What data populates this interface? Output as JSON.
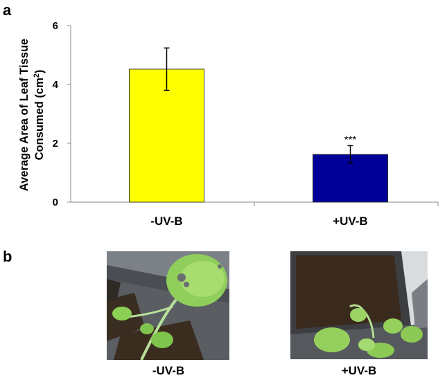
{
  "panel_a_label": "a",
  "panel_b_label": "b",
  "chart_data": {
    "type": "bar",
    "categories": [
      "-UV-B",
      "+UV-B"
    ],
    "values": [
      4.52,
      1.62
    ],
    "error": [
      0.72,
      0.3
    ],
    "annotations": [
      "",
      "***"
    ],
    "bar_colors": [
      "#ffff00",
      "#000099"
    ],
    "ylabel_line1": "Average Area of Leaf Tissue",
    "ylabel_line2": "Consumed (cm²)",
    "xlabel": "",
    "ylim": [
      0,
      6
    ],
    "yticks": [
      "0",
      "2",
      "4",
      "6"
    ],
    "grid": false
  },
  "photos": [
    {
      "caption": "-UV-B",
      "description": "damaged leaves"
    },
    {
      "caption": "+UV-B",
      "description": "healthy leaves"
    }
  ]
}
